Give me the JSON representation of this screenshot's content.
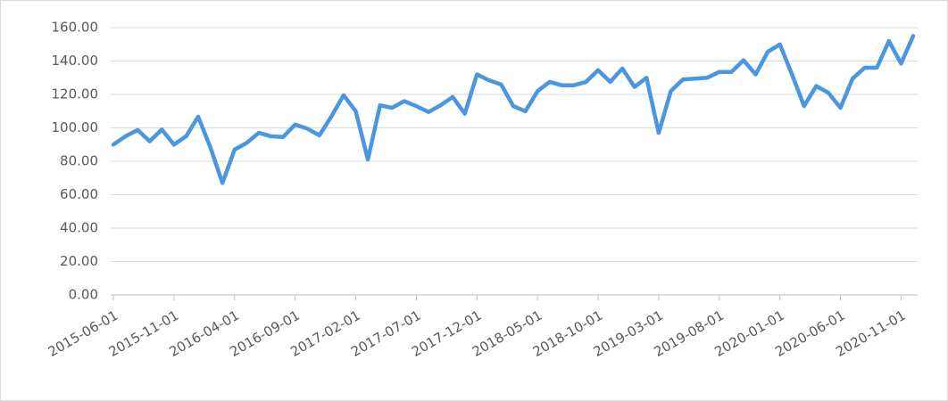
{
  "chart_data": {
    "type": "line",
    "categories": [
      "2015-06-01",
      null,
      null,
      null,
      null,
      "2015-11-01",
      null,
      null,
      null,
      null,
      "2016-04-01",
      null,
      null,
      null,
      null,
      "2016-09-01",
      null,
      null,
      null,
      null,
      "2017-02-01",
      null,
      null,
      null,
      null,
      "2017-07-01",
      null,
      null,
      null,
      null,
      "2017-12-01",
      null,
      null,
      null,
      null,
      "2018-05-01",
      null,
      null,
      null,
      null,
      "2018-10-01",
      null,
      null,
      null,
      null,
      "2019-03-01",
      null,
      null,
      null,
      null,
      "2019-08-01",
      null,
      null,
      null,
      null,
      "2020-01-01",
      null,
      null,
      null,
      null,
      "2020-06-01",
      null,
      null,
      null,
      null,
      "2020-11-01",
      null
    ],
    "series": [
      {
        "color": "#4a96e0",
        "values": [
          90,
          95,
          98.7,
          92,
          99,
          90,
          95,
          106.7,
          88.5,
          67,
          87,
          91,
          97,
          95,
          94.5,
          102,
          99.5,
          95.5,
          107,
          119.5,
          110,
          81,
          113.5,
          112,
          116,
          113,
          109.5,
          113.5,
          118.5,
          108.5,
          132,
          128.5,
          126,
          113,
          110,
          122,
          127.5,
          125.5,
          125.5,
          127.5,
          134.5,
          127.5,
          135.5,
          124.5,
          130,
          97,
          122,
          129,
          129.5,
          130,
          133.5,
          133.5,
          140.5,
          132,
          145.5,
          150,
          132,
          113,
          125,
          121,
          112,
          129.5,
          136,
          136,
          152,
          138.5,
          155
        ]
      }
    ],
    "ylim": [
      0,
      160
    ],
    "yticks": [
      {
        "value": 0,
        "label": "0.00"
      },
      {
        "value": 20,
        "label": "20.00"
      },
      {
        "value": 40,
        "label": "40.00"
      },
      {
        "value": 60,
        "label": "60.00"
      },
      {
        "value": 80,
        "label": "80.00"
      },
      {
        "value": 100,
        "label": "100.00"
      },
      {
        "value": 120,
        "label": "120.00"
      },
      {
        "value": 140,
        "label": "140.00"
      },
      {
        "value": 160,
        "label": "160.00"
      }
    ],
    "grid": true
  }
}
